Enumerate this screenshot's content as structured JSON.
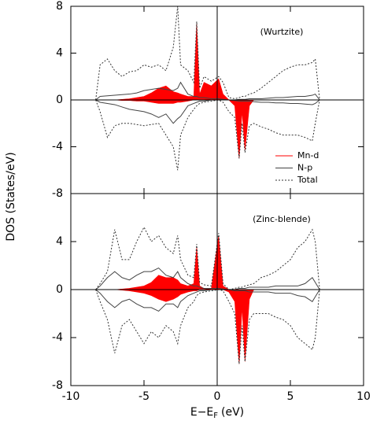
{
  "chart_data": [
    {
      "type": "line",
      "ylabel": "DOS (States/eV)",
      "annotation": "(Wurtzite)",
      "x": [
        -8.3,
        -8,
        -7.5,
        -7,
        -6.5,
        -6,
        -5.5,
        -5,
        -4.5,
        -4,
        -3.5,
        -3,
        -2.7,
        -2.5,
        -2,
        -1.6,
        -1.4,
        -1.2,
        -0.9,
        -0.4,
        0.1,
        0.4,
        0.8,
        1.2,
        1.5,
        1.7,
        1.9,
        2.2,
        2.5,
        3,
        3.5,
        4,
        4.5,
        5,
        5.5,
        6,
        6.5,
        6.7,
        7
      ],
      "xlim": [
        -10,
        10
      ],
      "xticks": [
        -10,
        -5,
        0,
        5,
        10
      ],
      "ylim": [
        -8,
        8
      ],
      "yticks": [
        -8,
        -4,
        0,
        4,
        8
      ],
      "series": [
        {
          "name": "Mn-d",
          "color": "#ff0000",
          "style": "fill",
          "values": [
            0,
            0,
            0,
            0,
            0.05,
            0.1,
            0.2,
            0.3,
            0.6,
            1,
            1.2,
            0.7,
            0.6,
            0.5,
            0.3,
            0.3,
            6.5,
            0.5,
            1.5,
            1.2,
            1.8,
            0.5,
            0,
            0,
            0,
            0,
            0,
            0,
            0,
            0,
            0,
            0,
            0,
            0,
            0,
            0,
            0,
            0,
            0
          ]
        },
        {
          "color": "#ff0000",
          "style": "fill",
          "values": [
            0,
            0,
            0,
            0,
            -0.05,
            -0.05,
            -0.1,
            -0.1,
            -0.2,
            -0.3,
            -0.3,
            -0.3,
            -0.2,
            -0.2,
            -0.1,
            0,
            0,
            0,
            0,
            0,
            0,
            0,
            0,
            -0.5,
            -5,
            -1,
            -4.3,
            -0.5,
            0,
            0,
            0,
            0,
            0,
            0,
            0,
            0,
            0,
            0,
            0
          ]
        },
        {
          "name": "N-p",
          "color": "#444444",
          "style": "solid",
          "values": [
            0,
            0.3,
            0.35,
            0.4,
            0.45,
            0.5,
            0.6,
            0.8,
            0.9,
            1,
            0.9,
            0.8,
            1,
            1.5,
            0.5,
            0.3,
            0.3,
            0.2,
            0.2,
            0.1,
            0.1,
            0.05,
            0,
            0,
            0.05,
            0.05,
            0.05,
            0.1,
            0.1,
            0.1,
            0.15,
            0.2,
            0.2,
            0.25,
            0.3,
            0.3,
            0.4,
            0.5,
            0
          ]
        },
        {
          "color": "#444444",
          "style": "solid",
          "values": [
            0,
            -0.2,
            -0.3,
            -0.4,
            -0.6,
            -0.8,
            -0.9,
            -1,
            -1.2,
            -1.5,
            -1.2,
            -2,
            -1.6,
            -1.4,
            -0.5,
            -0.3,
            -0.2,
            -0.1,
            -0.1,
            0,
            0,
            0,
            0,
            -0.05,
            -0.1,
            -0.1,
            -0.1,
            -0.1,
            -0.15,
            -0.2,
            -0.2,
            -0.25,
            -0.25,
            -0.3,
            -0.3,
            -0.35,
            -0.4,
            -0.3,
            0
          ]
        },
        {
          "name": "Total",
          "color": "#333333",
          "style": "dotted",
          "values": [
            0,
            3,
            3.5,
            2.5,
            2,
            2.4,
            2.5,
            3,
            2.8,
            3,
            2.5,
            4.5,
            8,
            3,
            2.5,
            1.5,
            6.7,
            1,
            2,
            1.6,
            2,
            1.5,
            0.2,
            0.1,
            0.2,
            0.3,
            0.3,
            0.5,
            0.6,
            1,
            1.5,
            2,
            2.5,
            2.8,
            3,
            3,
            3.2,
            3.5,
            0
          ]
        },
        {
          "color": "#333333",
          "style": "dotted",
          "values": [
            0,
            -1,
            -3.2,
            -2.2,
            -2,
            -2,
            -2.1,
            -2.2,
            -2.1,
            -2,
            -3,
            -4,
            -6,
            -3,
            -1.5,
            -0.8,
            -0.5,
            -0.3,
            -0.2,
            -0.1,
            0,
            -0.2,
            -1,
            -1.5,
            -5,
            -2,
            -4.5,
            -2.2,
            -2,
            -2.3,
            -2.5,
            -2.8,
            -3,
            -3,
            -3,
            -3.2,
            -3.5,
            -2,
            0
          ]
        }
      ]
    },
    {
      "type": "line",
      "annotation": "(Zinc-blende)",
      "xlabel": "E−E",
      "xlabel_sub": "F",
      "xlabel_unit": "(eV)",
      "x": [
        -8.3,
        -8,
        -7.5,
        -7,
        -6.5,
        -6,
        -5.5,
        -5,
        -4.5,
        -4,
        -3.5,
        -3,
        -2.7,
        -2.5,
        -2,
        -1.6,
        -1.4,
        -1.2,
        -0.9,
        -0.4,
        0.1,
        0.4,
        0.8,
        1.2,
        1.5,
        1.7,
        1.9,
        2.2,
        2.5,
        3,
        3.5,
        4,
        4.5,
        5,
        5.5,
        6,
        6.5,
        6.7,
        7
      ],
      "xlim": [
        -10,
        10
      ],
      "xticks": [
        -10,
        -5,
        0,
        5,
        10
      ],
      "ylim": [
        -8,
        8
      ],
      "yticks": [
        -8,
        -4,
        0,
        4
      ],
      "series": [
        {
          "color": "#ff0000",
          "style": "fill",
          "values": [
            0,
            0,
            0,
            0,
            0.05,
            0.1,
            0.2,
            0.3,
            0.6,
            1.2,
            1,
            1,
            0.8,
            0.5,
            0.3,
            0.5,
            3.5,
            0.3,
            0.1,
            0.1,
            4.5,
            0.3,
            0,
            0,
            0,
            0,
            0,
            0,
            0,
            0,
            0,
            0,
            0,
            0,
            0,
            0,
            0,
            0,
            0
          ]
        },
        {
          "color": "#ff0000",
          "style": "fill",
          "values": [
            0,
            0,
            0,
            0,
            -0.05,
            -0.1,
            -0.2,
            -0.3,
            -0.5,
            -0.8,
            -1,
            -0.8,
            -0.6,
            -0.4,
            -0.2,
            -0.1,
            -0.1,
            0,
            0,
            0,
            0,
            0,
            -0.2,
            -1,
            -6.2,
            -1.5,
            -6,
            -0.8,
            0,
            0,
            0,
            0,
            0,
            0,
            0,
            0,
            0,
            0,
            0
          ]
        },
        {
          "color": "#444444",
          "style": "solid",
          "values": [
            0,
            0.3,
            1,
            1.5,
            1,
            0.8,
            1.2,
            1.5,
            1.5,
            1.8,
            1.2,
            1,
            1.5,
            1,
            0.5,
            0.3,
            0.3,
            0.2,
            0.1,
            0.1,
            0.1,
            0.05,
            0,
            0,
            0.1,
            0.1,
            0.1,
            0.2,
            0.2,
            0.2,
            0.2,
            0.3,
            0.3,
            0.3,
            0.3,
            0.5,
            1,
            0.6,
            0
          ]
        },
        {
          "color": "#444444",
          "style": "solid",
          "values": [
            0,
            -0.3,
            -1,
            -1.5,
            -1,
            -0.8,
            -1.2,
            -1.5,
            -1.5,
            -1.8,
            -1.2,
            -1.2,
            -1.5,
            -1,
            -0.5,
            -0.3,
            -0.2,
            -0.1,
            -0.1,
            0,
            0,
            0,
            0,
            -0.1,
            -0.1,
            -0.1,
            -0.1,
            -0.2,
            -0.2,
            -0.2,
            -0.2,
            -0.3,
            -0.3,
            -0.3,
            -0.5,
            -0.6,
            -1,
            -0.6,
            0
          ]
        },
        {
          "color": "#333333",
          "style": "dotted",
          "values": [
            0,
            0.5,
            1.5,
            5,
            2.5,
            2.5,
            4,
            5.2,
            4,
            4.5,
            3.5,
            3,
            4.5,
            2.5,
            1.2,
            1,
            3.8,
            0.6,
            0.4,
            0.3,
            4.7,
            0.5,
            0,
            0.1,
            0.2,
            0.2,
            0.3,
            0.4,
            0.5,
            1,
            1.2,
            1.5,
            2,
            2.5,
            3.5,
            4,
            5,
            4,
            0
          ]
        },
        {
          "color": "#333333",
          "style": "dotted",
          "values": [
            0,
            -1,
            -2.5,
            -5.3,
            -3,
            -2.5,
            -3.5,
            -4.5,
            -3.5,
            -4,
            -3,
            -3.5,
            -4.5,
            -3,
            -1.5,
            -1,
            -0.5,
            -0.3,
            -0.2,
            -0.1,
            0,
            -0.1,
            -1,
            -2,
            -6.2,
            -3,
            -6,
            -2.5,
            -2,
            -2,
            -2,
            -2.3,
            -2.5,
            -3,
            -4,
            -4.5,
            -5,
            -4,
            0
          ]
        }
      ]
    }
  ]
}
